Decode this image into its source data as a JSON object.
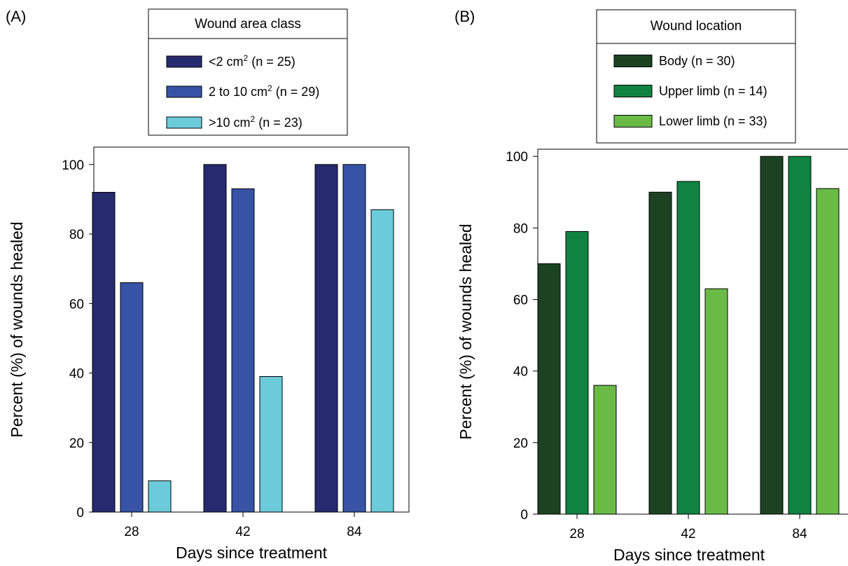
{
  "chart_data": [
    {
      "panel_label": "(A)",
      "type": "bar",
      "categories": [
        "28",
        "42",
        "84"
      ],
      "series": [
        {
          "name": "<2 cm2 (n = 25)",
          "values": [
            92,
            100,
            100
          ],
          "color": "#262a6e"
        },
        {
          "name": "2 to 10 cm2 (n = 29)",
          "values": [
            66,
            93,
            100
          ],
          "color": "#3653a6"
        },
        {
          "name": ">10 cm2 (n = 23)",
          "values": [
            9,
            39,
            87
          ],
          "color": "#6ccbdb"
        }
      ],
      "legend_title": "Wound area class",
      "legend": [
        {
          "label": "<2 cm",
          "sup": "2",
          "rest": " (n = 25)"
        },
        {
          "label": "2 to 10 cm",
          "sup": "2",
          "rest": " (n = 29)"
        },
        {
          "label": ">10 cm",
          "sup": "2",
          "rest": " (n = 23)"
        }
      ],
      "xlabel": "Days since treatment",
      "ylabel": "Percent (%) of wounds healed",
      "ylim": [
        0,
        105
      ],
      "yticks": [
        0,
        20,
        40,
        60,
        80,
        100
      ],
      "legend_position": "top-center, above plot",
      "grid": false
    },
    {
      "panel_label": "(B)",
      "type": "bar",
      "categories": [
        "28",
        "42",
        "84"
      ],
      "series": [
        {
          "name": "Body (n = 30)",
          "values": [
            70,
            90,
            100
          ],
          "color": "#1c4222"
        },
        {
          "name": "Upper limb (n = 14)",
          "values": [
            79,
            93,
            100
          ],
          "color": "#0f8442"
        },
        {
          "name": "Lower limb (n = 33)",
          "values": [
            36,
            63,
            91
          ],
          "color": "#69bb46"
        }
      ],
      "legend_title": "Wound location",
      "legend": [
        {
          "label": "Body (n = 30)",
          "sup": "",
          "rest": ""
        },
        {
          "label": "Upper limb (n = 14)",
          "sup": "",
          "rest": ""
        },
        {
          "label": "Lower limb (n = 33)",
          "sup": "",
          "rest": ""
        }
      ],
      "xlabel": "Days since treatment",
      "ylabel": "Percent (%) of wounds healed",
      "ylim": [
        0,
        102
      ],
      "yticks": [
        0,
        20,
        40,
        60,
        80,
        100
      ],
      "legend_position": "top-center, above plot",
      "grid": false
    }
  ]
}
